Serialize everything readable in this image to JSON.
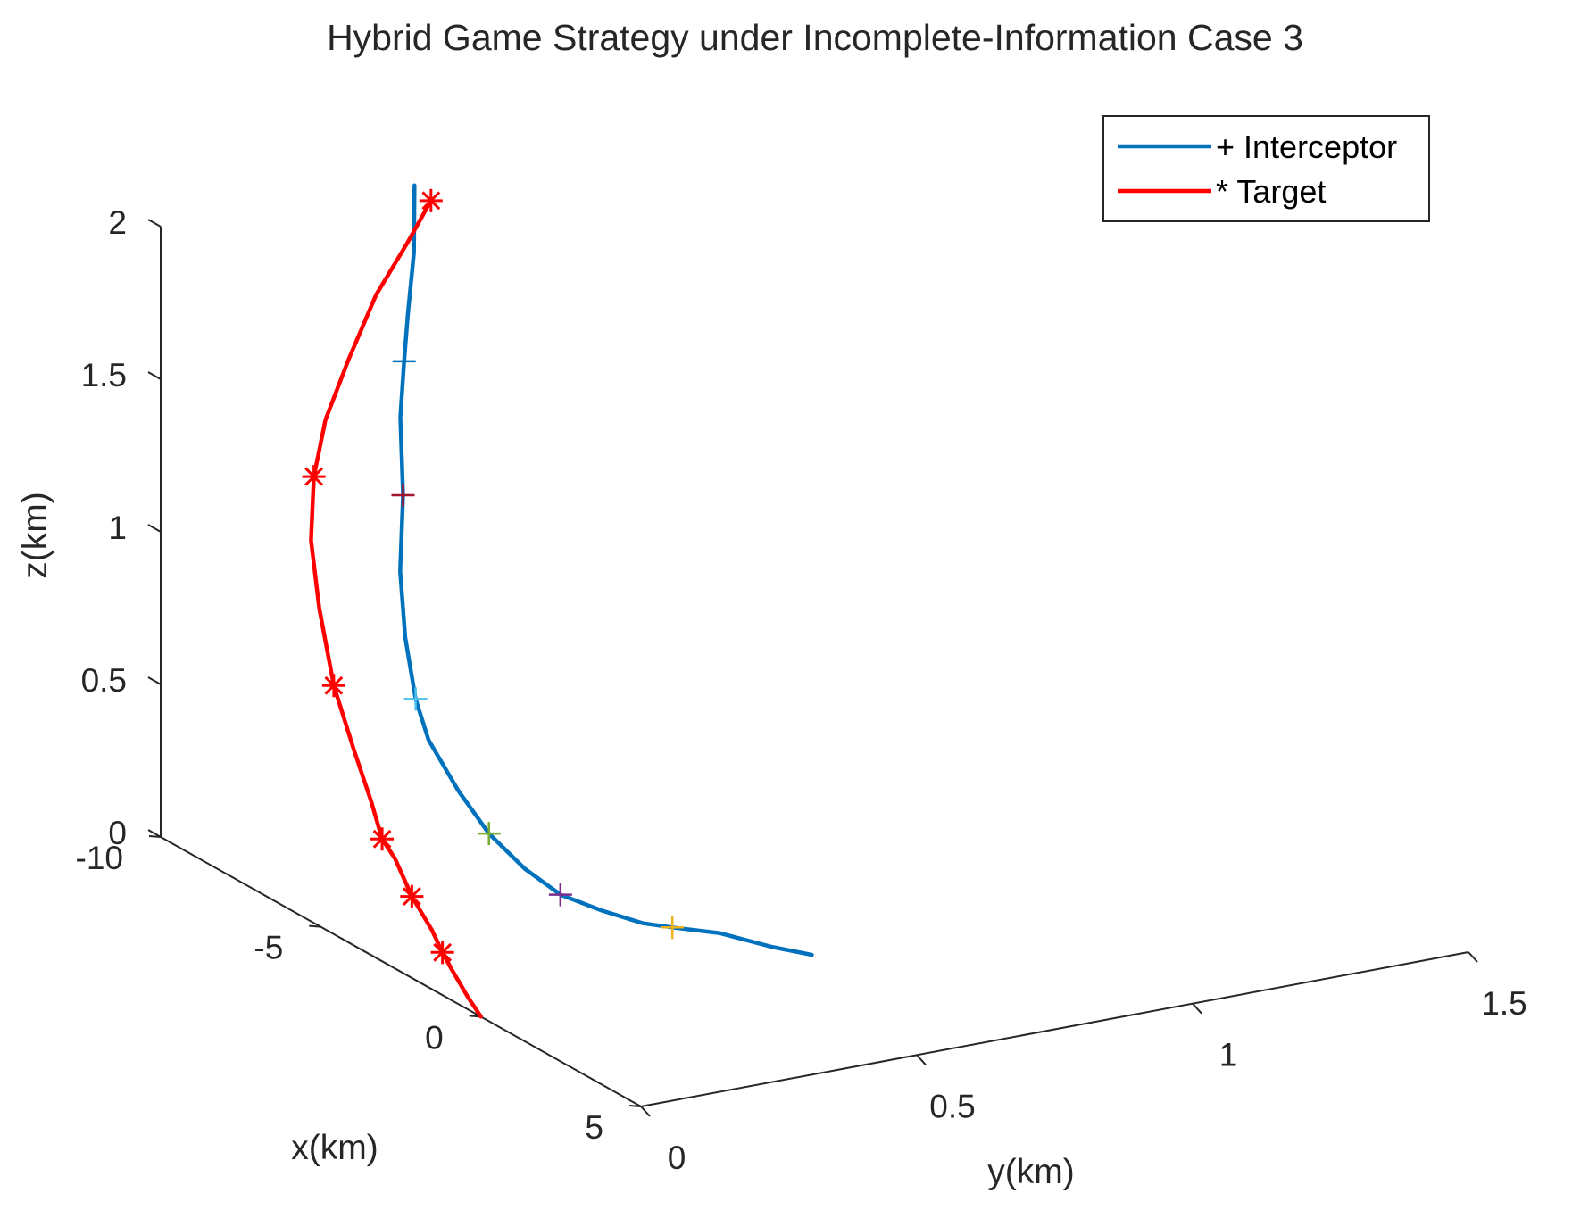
{
  "chart_data": {
    "type": "line",
    "projection": "3d",
    "title": "Hybrid Game Strategy under Incomplete-Information Case 3",
    "xlabel": "x(km)",
    "ylabel": "y(km)",
    "zlabel": "z(km)",
    "xlim": [
      -10,
      5
    ],
    "ylim": [
      0,
      1.5
    ],
    "zlim": [
      0,
      2
    ],
    "x_ticks": [
      "-10",
      "-5",
      "0",
      "5"
    ],
    "y_ticks": [
      "0",
      "0.5",
      "1",
      "1.5"
    ],
    "z_ticks": [
      "0",
      "0.5",
      "1",
      "1.5",
      "2"
    ],
    "grid": false,
    "legend_position": "top-right",
    "colors": {
      "interceptor": "#0072bd",
      "target": "#ff0000",
      "axis": "#262626"
    },
    "series": [
      {
        "name": "Interceptor",
        "legend_label": "+ Interceptor",
        "marker": "+",
        "points": [
          {
            "x": 0.0,
            "y": 0.6,
            "z": 0.0
          },
          {
            "x": -0.4,
            "y": 0.55,
            "z": 0.02
          },
          {
            "x": -1.0,
            "y": 0.49,
            "z": 0.05
          },
          {
            "x": -1.6,
            "y": 0.44,
            "z": 0.05
          },
          {
            "x": -2.0,
            "y": 0.41,
            "z": 0.05
          },
          {
            "x": -2.6,
            "y": 0.37,
            "z": 0.07
          },
          {
            "x": -3.2,
            "y": 0.33,
            "z": 0.1
          },
          {
            "x": -3.8,
            "y": 0.3,
            "z": 0.16
          },
          {
            "x": -4.4,
            "y": 0.27,
            "z": 0.25
          },
          {
            "x": -5.0,
            "y": 0.25,
            "z": 0.36
          },
          {
            "x": -5.6,
            "y": 0.23,
            "z": 0.5
          },
          {
            "x": -6.0,
            "y": 0.23,
            "z": 0.61
          },
          {
            "x": -6.5,
            "y": 0.24,
            "z": 0.78
          },
          {
            "x": -7.0,
            "y": 0.26,
            "z": 0.96
          },
          {
            "x": -7.6,
            "y": 0.3,
            "z": 1.16
          },
          {
            "x": -8.2,
            "y": 0.33,
            "z": 1.37
          },
          {
            "x": -8.6,
            "y": 0.36,
            "z": 1.52
          },
          {
            "x": -9.0,
            "y": 0.39,
            "z": 1.64
          },
          {
            "x": -9.5,
            "y": 0.43,
            "z": 1.8
          },
          {
            "x": -10.0,
            "y": 0.46,
            "z": 1.98
          }
        ],
        "markers": [
          {
            "x": -1.6,
            "y": 0.44,
            "z": 0.05,
            "color": "#edb120"
          },
          {
            "x": -3.2,
            "y": 0.33,
            "z": 0.1,
            "color": "#7e2f8e"
          },
          {
            "x": -4.4,
            "y": 0.27,
            "z": 0.25,
            "color": "#77ac30"
          },
          {
            "x": -6.0,
            "y": 0.23,
            "z": 0.61,
            "color": "#4dbeee"
          },
          {
            "x": -7.6,
            "y": 0.3,
            "z": 1.16,
            "color": "#a2142f"
          },
          {
            "x": -8.6,
            "y": 0.36,
            "z": 1.52,
            "color": "#0072bd"
          }
        ]
      },
      {
        "name": "Target",
        "legend_label": "* Target",
        "marker": "*",
        "points": [
          {
            "x": 0.0,
            "y": 0.0,
            "z": 0.0
          },
          {
            "x": -0.4,
            "y": 0.0,
            "z": 0.04
          },
          {
            "x": -0.9,
            "y": 0.0,
            "z": 0.1
          },
          {
            "x": -1.2,
            "y": 0.0,
            "z": 0.14
          },
          {
            "x": -1.7,
            "y": 0.01,
            "z": 0.18
          },
          {
            "x": -2.5,
            "y": 0.02,
            "z": 0.24
          },
          {
            "x": -3.2,
            "y": 0.03,
            "z": 0.32
          },
          {
            "x": -3.6,
            "y": 0.03,
            "z": 0.36
          },
          {
            "x": -4.3,
            "y": 0.05,
            "z": 0.44
          },
          {
            "x": -5.0,
            "y": 0.06,
            "z": 0.56
          },
          {
            "x": -5.8,
            "y": 0.07,
            "z": 0.72
          },
          {
            "x": -6.6,
            "y": 0.09,
            "z": 0.92
          },
          {
            "x": -7.2,
            "y": 0.11,
            "z": 1.1
          },
          {
            "x": -7.8,
            "y": 0.15,
            "z": 1.26
          },
          {
            "x": -8.3,
            "y": 0.2,
            "z": 1.4
          },
          {
            "x": -8.8,
            "y": 0.27,
            "z": 1.54
          },
          {
            "x": -9.3,
            "y": 0.35,
            "z": 1.7
          },
          {
            "x": -9.7,
            "y": 0.43,
            "z": 1.82
          },
          {
            "x": -10.0,
            "y": 0.49,
            "z": 1.92
          }
        ],
        "markers": [
          {
            "x": -1.2,
            "y": 0.0,
            "z": 0.14,
            "color": "#ff0000"
          },
          {
            "x": -2.5,
            "y": 0.02,
            "z": 0.24,
            "color": "#ff0000"
          },
          {
            "x": -3.6,
            "y": 0.03,
            "z": 0.36,
            "color": "#ff0000"
          },
          {
            "x": -5.8,
            "y": 0.07,
            "z": 0.72,
            "color": "#ff0000"
          },
          {
            "x": -7.8,
            "y": 0.15,
            "z": 1.26,
            "color": "#ff0000"
          },
          {
            "x": -10.0,
            "y": 0.49,
            "z": 1.92,
            "color": "#ff0000"
          }
        ]
      }
    ]
  }
}
